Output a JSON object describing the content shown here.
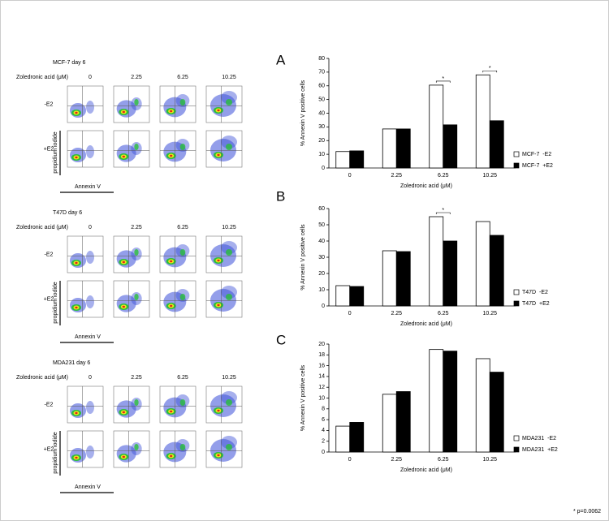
{
  "flow_panels": [
    {
      "title": "MCF-7 day 6",
      "condition_label": "Zoledronic acid (μM)",
      "concentrations": [
        "0",
        "2.25",
        "6.25",
        "10.25"
      ],
      "rows": [
        "-E2",
        "+E2"
      ],
      "y_label": "propidium iodide",
      "x_label": "Annexin V"
    },
    {
      "title": "T47D day 6",
      "condition_label": "Zoledronic acid (μM)",
      "concentrations": [
        "0",
        "2.25",
        "6.25",
        "10.25"
      ],
      "rows": [
        "-E2",
        "+E2"
      ],
      "y_label": "propidium iodide",
      "x_label": "Annexin V"
    },
    {
      "title": "MDA231 day 6",
      "condition_label": "Zoledronic acid (μM)",
      "concentrations": [
        "0",
        "2.25",
        "6.25",
        "10.25"
      ],
      "rows": [
        "-E2",
        "+E2"
      ],
      "y_label": "propidium iodide",
      "x_label": "Annexin V"
    }
  ],
  "chart_data": [
    {
      "type": "bar",
      "panel": "A",
      "xlabel": "Zoledronic acid (μM)",
      "ylabel": "% Annexin V positive cells",
      "categories": [
        "0",
        "2.25",
        "6.25",
        "10.25"
      ],
      "series": [
        {
          "name": "MCF-7  -E2",
          "color": "#ffffff",
          "values": [
            12,
            28.5,
            60.5,
            68
          ]
        },
        {
          "name": "MCF-7  +E2",
          "color": "#000000",
          "values": [
            12.5,
            28.5,
            31.5,
            34.5
          ]
        }
      ],
      "ylim": [
        0,
        80
      ],
      "yticks": [
        0,
        10,
        20,
        30,
        40,
        50,
        60,
        70,
        80
      ],
      "legend": "right",
      "significance": [
        {
          "category": "6.25",
          "text": "*"
        },
        {
          "category": "10.25",
          "text": "*"
        }
      ]
    },
    {
      "type": "bar",
      "panel": "B",
      "xlabel": "Zoledronic acid (μM)",
      "ylabel": "% Annexin V positive cells",
      "categories": [
        "0",
        "2.25",
        "6.25",
        "10.25"
      ],
      "series": [
        {
          "name": "T47D  -E2",
          "color": "#ffffff",
          "values": [
            12.5,
            34,
            55,
            52
          ]
        },
        {
          "name": "T47D  +E2",
          "color": "#000000",
          "values": [
            12,
            33.5,
            40,
            43.5
          ]
        }
      ],
      "ylim": [
        0,
        60
      ],
      "yticks": [
        0,
        10,
        20,
        30,
        40,
        50,
        60
      ],
      "legend": "right",
      "significance": [
        {
          "category": "6.25",
          "text": "*"
        }
      ]
    },
    {
      "type": "bar",
      "panel": "C",
      "xlabel": "Zoledronic acid (μM)",
      "ylabel": "% Annexin V positive cells",
      "categories": [
        "0",
        "2.25",
        "6.25",
        "10.25"
      ],
      "series": [
        {
          "name": "MDA231  -E2",
          "color": "#ffffff",
          "values": [
            4.8,
            10.7,
            19,
            17.3
          ]
        },
        {
          "name": "MDA231  +E2",
          "color": "#000000",
          "values": [
            5.5,
            11.2,
            18.7,
            14.8
          ]
        }
      ],
      "ylim": [
        0,
        20
      ],
      "yticks": [
        0,
        2,
        4,
        6,
        8,
        10,
        12,
        14,
        16,
        18,
        20
      ],
      "legend": "right",
      "significance": []
    }
  ],
  "footnote": "* p=0.0062"
}
